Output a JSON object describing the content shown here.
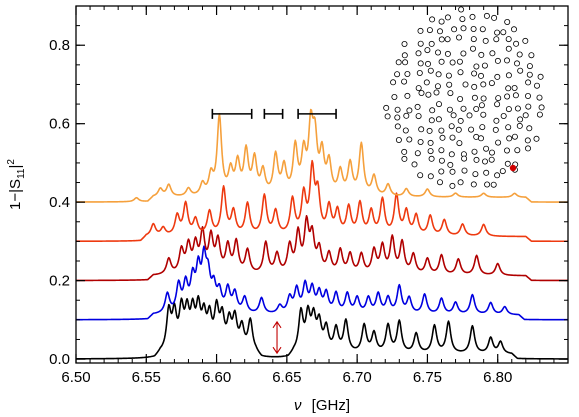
{
  "chart_data": {
    "type": "line",
    "title": "",
    "xlabel": {
      "symbol": "ν",
      "unit": "[GHz]"
    },
    "ylabel": {
      "prefix": "1−|S",
      "sub": "11",
      "suffix": "|",
      "sup": "2"
    },
    "xlim": [
      6.5,
      6.85
    ],
    "ylim": [
      -0.01,
      0.9
    ],
    "x_ticks": [
      6.5,
      6.55,
      6.6,
      6.65,
      6.7,
      6.75,
      6.8
    ],
    "x_tick_labels": [
      "6.50",
      "6.55",
      "6.60",
      "6.65",
      "6.70",
      "6.75",
      "6.80"
    ],
    "y_ticks": [
      0.0,
      0.2,
      0.4,
      0.6,
      0.8
    ],
    "y_tick_labels": [
      "0.0",
      "0.2",
      "0.4",
      "0.6",
      "0.8"
    ],
    "grid": false,
    "series": [
      {
        "color": "#000000",
        "offset": 0.0,
        "band": [
          6.56,
          6.81
        ],
        "gap": [
          6.628,
          6.655
        ],
        "peaks": [
          [
            6.566,
            0.1
          ],
          [
            6.57,
            0.09
          ],
          [
            6.575,
            0.1
          ],
          [
            6.579,
            0.09
          ],
          [
            6.583,
            0.09
          ],
          [
            6.587,
            0.1
          ],
          [
            6.591,
            0.08
          ],
          [
            6.595,
            0.08
          ],
          [
            6.6,
            0.1
          ],
          [
            6.604,
            0.08
          ],
          [
            6.609,
            0.07
          ],
          [
            6.613,
            0.08
          ],
          [
            6.618,
            0.06
          ],
          [
            6.624,
            0.08
          ],
          [
            6.66,
            0.1
          ],
          [
            6.665,
            0.09
          ],
          [
            6.669,
            0.08
          ],
          [
            6.673,
            0.07
          ],
          [
            6.678,
            0.06
          ],
          [
            6.685,
            0.06
          ],
          [
            6.692,
            0.08
          ],
          [
            6.705,
            0.07
          ],
          [
            6.712,
            0.05
          ],
          [
            6.722,
            0.07
          ],
          [
            6.73,
            0.08
          ],
          [
            6.742,
            0.05
          ],
          [
            6.755,
            0.07
          ],
          [
            6.765,
            0.08
          ],
          [
            6.782,
            0.07
          ],
          [
            6.795,
            0.04
          ],
          [
            6.802,
            0.03
          ]
        ]
      },
      {
        "color": "#0000e0",
        "offset": 0.1,
        "band": [
          6.555,
          6.815
        ],
        "gap": [],
        "peaks": [
          [
            6.565,
            0.05
          ],
          [
            6.573,
            0.07
          ],
          [
            6.578,
            0.07
          ],
          [
            6.583,
            0.08
          ],
          [
            6.587,
            0.1
          ],
          [
            6.591,
            0.12
          ],
          [
            6.594,
            0.08
          ],
          [
            6.598,
            0.06
          ],
          [
            6.602,
            0.05
          ],
          [
            6.608,
            0.06
          ],
          [
            6.613,
            0.05
          ],
          [
            6.62,
            0.04
          ],
          [
            6.632,
            0.04
          ],
          [
            6.645,
            0.02
          ],
          [
            6.652,
            0.04
          ],
          [
            6.657,
            0.06
          ],
          [
            6.663,
            0.07
          ],
          [
            6.668,
            0.06
          ],
          [
            6.673,
            0.05
          ],
          [
            6.678,
            0.05
          ],
          [
            6.685,
            0.05
          ],
          [
            6.693,
            0.05
          ],
          [
            6.7,
            0.04
          ],
          [
            6.708,
            0.04
          ],
          [
            6.715,
            0.05
          ],
          [
            6.722,
            0.04
          ],
          [
            6.73,
            0.07
          ],
          [
            6.737,
            0.04
          ],
          [
            6.748,
            0.05
          ],
          [
            6.76,
            0.04
          ],
          [
            6.77,
            0.03
          ],
          [
            6.782,
            0.05
          ],
          [
            6.795,
            0.03
          ],
          [
            6.805,
            0.02
          ]
        ]
      },
      {
        "color": "#b00000",
        "offset": 0.2,
        "band": [
          6.555,
          6.82
        ],
        "gap": [],
        "peaks": [
          [
            6.566,
            0.04
          ],
          [
            6.575,
            0.06
          ],
          [
            6.58,
            0.07
          ],
          [
            6.585,
            0.07
          ],
          [
            6.59,
            0.1
          ],
          [
            6.596,
            0.09
          ],
          [
            6.601,
            0.08
          ],
          [
            6.608,
            0.07
          ],
          [
            6.614,
            0.08
          ],
          [
            6.622,
            0.06
          ],
          [
            6.635,
            0.08
          ],
          [
            6.643,
            0.05
          ],
          [
            6.652,
            0.07
          ],
          [
            6.658,
            0.1
          ],
          [
            6.664,
            0.12
          ],
          [
            6.668,
            0.09
          ],
          [
            6.673,
            0.06
          ],
          [
            6.68,
            0.05
          ],
          [
            6.688,
            0.06
          ],
          [
            6.695,
            0.05
          ],
          [
            6.703,
            0.05
          ],
          [
            6.712,
            0.06
          ],
          [
            6.718,
            0.07
          ],
          [
            6.725,
            0.09
          ],
          [
            6.732,
            0.08
          ],
          [
            6.74,
            0.05
          ],
          [
            6.75,
            0.04
          ],
          [
            6.76,
            0.05
          ],
          [
            6.772,
            0.04
          ],
          [
            6.785,
            0.05
          ],
          [
            6.8,
            0.03
          ]
        ]
      },
      {
        "color": "#ee3a10",
        "offset": 0.3,
        "band": [
          6.55,
          6.82
        ],
        "gap": [],
        "peaks": [
          [
            6.555,
            0.03
          ],
          [
            6.562,
            0.02
          ],
          [
            6.572,
            0.05
          ],
          [
            6.578,
            0.08
          ],
          [
            6.585,
            0.04
          ],
          [
            6.595,
            0.06
          ],
          [
            6.605,
            0.12
          ],
          [
            6.612,
            0.06
          ],
          [
            6.622,
            0.08
          ],
          [
            6.634,
            0.1
          ],
          [
            6.642,
            0.06
          ],
          [
            6.654,
            0.09
          ],
          [
            6.662,
            0.1
          ],
          [
            6.668,
            0.16
          ],
          [
            6.672,
            0.1
          ],
          [
            6.68,
            0.07
          ],
          [
            6.686,
            0.06
          ],
          [
            6.694,
            0.07
          ],
          [
            6.702,
            0.08
          ],
          [
            6.71,
            0.06
          ],
          [
            6.718,
            0.09
          ],
          [
            6.728,
            0.1
          ],
          [
            6.735,
            0.06
          ],
          [
            6.742,
            0.05
          ],
          [
            6.752,
            0.05
          ],
          [
            6.762,
            0.04
          ],
          [
            6.775,
            0.03
          ],
          [
            6.79,
            0.03
          ]
        ]
      },
      {
        "color": "#f5a03c",
        "offset": 0.4,
        "band": [
          6.555,
          6.82
        ],
        "gap": [],
        "peaks": [
          [
            6.543,
            0.01
          ],
          [
            6.56,
            0.02
          ],
          [
            6.566,
            0.03
          ],
          [
            6.58,
            0.02
          ],
          [
            6.59,
            0.03
          ],
          [
            6.596,
            0.05
          ],
          [
            6.602,
            0.2
          ],
          [
            6.61,
            0.06
          ],
          [
            6.615,
            0.08
          ],
          [
            6.621,
            0.11
          ],
          [
            6.627,
            0.09
          ],
          [
            6.633,
            0.06
          ],
          [
            6.642,
            0.1
          ],
          [
            6.648,
            0.07
          ],
          [
            6.656,
            0.12
          ],
          [
            6.662,
            0.1
          ],
          [
            6.667,
            0.16
          ],
          [
            6.67,
            0.13
          ],
          [
            6.675,
            0.1
          ],
          [
            6.68,
            0.08
          ],
          [
            6.688,
            0.06
          ],
          [
            6.695,
            0.08
          ],
          [
            6.703,
            0.13
          ],
          [
            6.712,
            0.05
          ],
          [
            6.722,
            0.03
          ],
          [
            6.735,
            0.02
          ],
          [
            6.75,
            0.02
          ],
          [
            6.77,
            0.01
          ],
          [
            6.79,
            0.01
          ],
          [
            6.812,
            0.01
          ]
        ]
      }
    ],
    "annotations": {
      "brackets": [
        [
          6.597,
          6.625
        ],
        [
          6.634,
          6.647
        ],
        [
          6.658,
          6.685
        ]
      ],
      "bracket_y": 0.625,
      "arrow": {
        "x": 6.643,
        "y_from": 0.015,
        "y_to": 0.095,
        "color": "#c00000"
      },
      "inset": {
        "description": "scatterer layout",
        "marked_color": "#d00000"
      }
    }
  }
}
